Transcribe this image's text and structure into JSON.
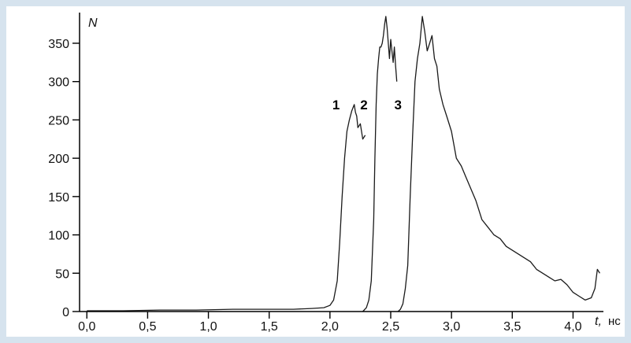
{
  "chart_data": {
    "type": "line",
    "y_axis_label": "N",
    "x_axis_label": "t,",
    "x_unit": "нс",
    "xlim": [
      -0.06,
      4.25
    ],
    "ylim": [
      0,
      390
    ],
    "x_ticks": [
      0.0,
      0.5,
      1.0,
      1.5,
      2.0,
      2.5,
      3.0,
      3.5,
      4.0
    ],
    "x_tick_labels": [
      "0,0",
      "0,5",
      "1,0",
      "1,5",
      "2,0",
      "2,5",
      "3,0",
      "3,5",
      "4,0"
    ],
    "y_ticks": [
      0,
      50,
      100,
      150,
      200,
      250,
      300,
      350
    ],
    "y_tick_labels": [
      "0",
      "50",
      "100",
      "150",
      "200",
      "250",
      "300",
      "350"
    ],
    "grid": false,
    "colors": {
      "line": "#1a1a1a",
      "axis": "#000000",
      "background": "#ffffff",
      "border": "#d6e3ee"
    },
    "series": [
      {
        "name": "1",
        "label_position": {
          "x": 2.05,
          "y": 270
        },
        "x": [
          0.0,
          0.3,
          0.6,
          0.9,
          1.2,
          1.5,
          1.7,
          1.85,
          1.95,
          2.0,
          2.03,
          2.06,
          2.08,
          2.1,
          2.12,
          2.14,
          2.16,
          2.18,
          2.2,
          2.21,
          2.22,
          2.23,
          2.25,
          2.27,
          2.29
        ],
        "y": [
          1,
          1,
          2,
          2,
          3,
          3,
          3,
          4,
          5,
          8,
          15,
          40,
          90,
          150,
          200,
          235,
          250,
          262,
          270,
          260,
          255,
          240,
          245,
          225,
          230
        ]
      },
      {
        "name": "2",
        "label_position": {
          "x": 2.28,
          "y": 270
        },
        "x": [
          2.27,
          2.3,
          2.32,
          2.34,
          2.36,
          2.37,
          2.38,
          2.39,
          2.4,
          2.41,
          2.42,
          2.43,
          2.44,
          2.45,
          2.46,
          2.47,
          2.48,
          2.49,
          2.5,
          2.51,
          2.52,
          2.53,
          2.54,
          2.55
        ],
        "y": [
          0,
          5,
          15,
          40,
          120,
          200,
          270,
          310,
          330,
          345,
          345,
          350,
          360,
          375,
          385,
          370,
          350,
          330,
          355,
          340,
          325,
          345,
          320,
          300
        ]
      },
      {
        "name": "3",
        "label_position": {
          "x": 2.56,
          "y": 270
        },
        "x": [
          2.56,
          2.58,
          2.6,
          2.62,
          2.64,
          2.66,
          2.68,
          2.7,
          2.72,
          2.74,
          2.76,
          2.78,
          2.8,
          2.82,
          2.84,
          2.86,
          2.88,
          2.9,
          2.93,
          2.96,
          3.0,
          3.04,
          3.08,
          3.12,
          3.16,
          3.2,
          3.25,
          3.3,
          3.35,
          3.4,
          3.45,
          3.5,
          3.55,
          3.6,
          3.65,
          3.7,
          3.75,
          3.8,
          3.85,
          3.9,
          3.95,
          4.0,
          4.05,
          4.1,
          4.15,
          4.18,
          4.2,
          4.22
        ],
        "y": [
          0,
          3,
          10,
          30,
          60,
          150,
          230,
          300,
          330,
          350,
          385,
          365,
          340,
          350,
          360,
          330,
          320,
          290,
          270,
          255,
          235,
          200,
          190,
          175,
          160,
          145,
          120,
          110,
          100,
          95,
          85,
          80,
          75,
          70,
          65,
          55,
          50,
          45,
          40,
          42,
          35,
          25,
          20,
          15,
          18,
          30,
          55,
          50
        ]
      }
    ]
  }
}
